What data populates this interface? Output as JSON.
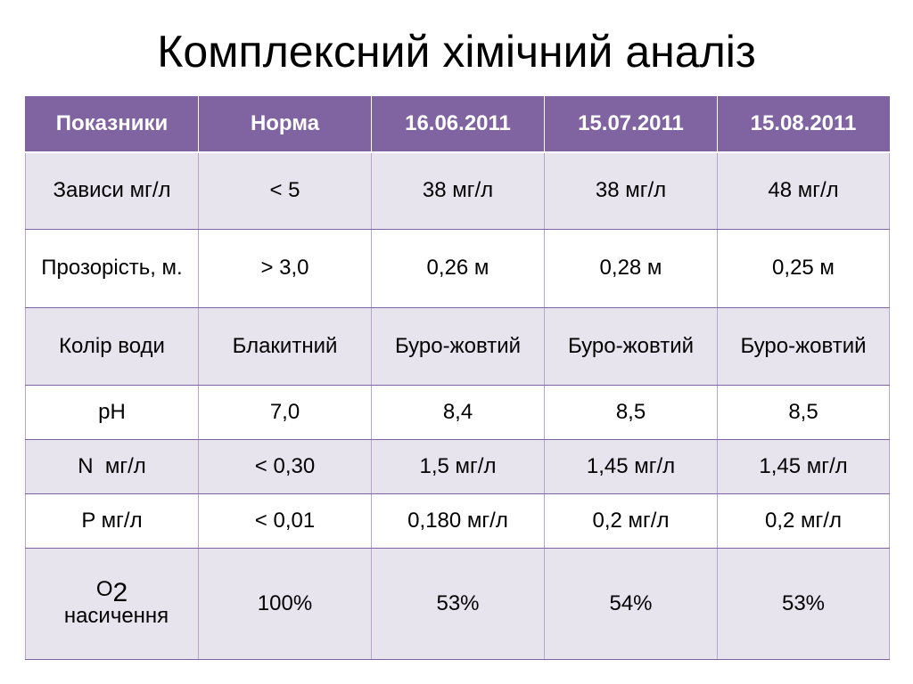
{
  "title": "Комплексний хімічний аналіз",
  "table": {
    "headers": [
      "Показники",
      "Норма",
      "16.06.2011",
      "15.07.2011",
      "15.08.2011"
    ],
    "rows": [
      {
        "label": "Зависи мг/л",
        "values": [
          "< 5",
          "38 мг/л",
          "38 мг/л",
          "48 мг/л"
        ]
      },
      {
        "label": "Прозорість, м.",
        "values": [
          "> 3,0",
          "0,26 м",
          "0,28 м",
          "0,25 м"
        ]
      },
      {
        "label": "Колір води",
        "values": [
          "Блакитний",
          "Буро-жовтий",
          "Буро-жовтий",
          "Буро-жовтий"
        ]
      },
      {
        "label": "pH",
        "values": [
          "7,0",
          "8,4",
          "8,5",
          "8,5"
        ]
      },
      {
        "label": "N  мг/л",
        "values": [
          "< 0,30",
          "1,5 мг/л",
          "1,45 мг/л",
          "1,45 мг/л"
        ]
      },
      {
        "label": "P мг/л",
        "values": [
          "< 0,01",
          "0,180 мг/л",
          "0,2 мг/л",
          "0,2 мг/л"
        ]
      },
      {
        "label_main": "O",
        "label_sub": "2",
        "label_rest": "насичення",
        "values": [
          "100%",
          "53%",
          "54%",
          "53%"
        ]
      }
    ]
  },
  "colors": {
    "header_bg": "#8064a2",
    "band": "#e8e4ee",
    "border": "#8064a2"
  }
}
